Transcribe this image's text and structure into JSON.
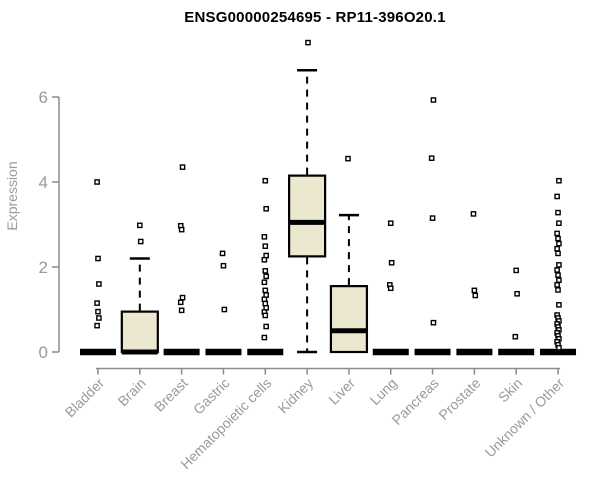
{
  "chart_data": {
    "type": "boxplot",
    "title": "ENSG00000254695 - RP11-396O20.1",
    "ylabel": "Expression",
    "xlabel": "",
    "yticks": [
      0,
      2,
      4,
      6
    ],
    "ylim": [
      0,
      7.4
    ],
    "grid": false,
    "legend": false,
    "categories": [
      "Bladder",
      "Brain",
      "Breast",
      "Gastric",
      "Hematopoietic cells",
      "Kidney",
      "Liver",
      "Lung",
      "Pancreas",
      "Prostate",
      "Skin",
      "Unknown / Other"
    ],
    "boxes": [
      {
        "category": "Bladder",
        "q1": 0,
        "median": 0,
        "q3": 0,
        "whisker_low": 0,
        "whisker_high": 0,
        "outliers": [
          4.0,
          2.2,
          1.6,
          1.15,
          0.95,
          0.8,
          0.62
        ]
      },
      {
        "category": "Brain",
        "q1": 0,
        "median": 0,
        "q3": 0.95,
        "whisker_low": 0,
        "whisker_high": 2.2,
        "outliers": [
          2.98,
          2.6
        ]
      },
      {
        "category": "Breast",
        "q1": 0,
        "median": 0,
        "q3": 0,
        "whisker_low": 0,
        "whisker_high": 0,
        "outliers": [
          4.35,
          2.97,
          2.88,
          1.28,
          1.17,
          0.98
        ]
      },
      {
        "category": "Gastric",
        "q1": 0,
        "median": 0,
        "q3": 0,
        "whisker_low": 0,
        "whisker_high": 0,
        "outliers": [
          2.32,
          2.03,
          1.0
        ]
      },
      {
        "category": "Hematopoietic cells",
        "q1": 0,
        "median": 0,
        "q3": 0,
        "whisker_low": 0,
        "whisker_high": 0,
        "outliers": [
          4.03,
          3.37,
          2.71,
          2.49,
          2.27,
          2.17,
          1.91,
          1.78,
          1.64,
          1.45,
          1.34,
          1.24,
          1.14,
          1.04,
          0.94,
          0.86,
          0.6,
          0.34
        ]
      },
      {
        "category": "Kidney",
        "q1": 2.25,
        "median": 3.05,
        "q3": 4.15,
        "whisker_low": 0,
        "whisker_high": 6.63,
        "outliers": [
          7.28
        ]
      },
      {
        "category": "Liver",
        "q1": 0,
        "median": 0.5,
        "q3": 1.55,
        "whisker_low": 0,
        "whisker_high": 3.22,
        "outliers": [
          4.55
        ]
      },
      {
        "category": "Lung",
        "q1": 0,
        "median": 0,
        "q3": 0,
        "whisker_low": 0,
        "whisker_high": 0,
        "outliers": [
          3.03,
          2.1,
          1.58,
          1.5
        ]
      },
      {
        "category": "Pancreas",
        "q1": 0,
        "median": 0,
        "q3": 0,
        "whisker_low": 0,
        "whisker_high": 0,
        "outliers": [
          5.93,
          4.56,
          3.15,
          0.69
        ]
      },
      {
        "category": "Prostate",
        "q1": 0,
        "median": 0,
        "q3": 0,
        "whisker_low": 0,
        "whisker_high": 0,
        "outliers": [
          3.25,
          1.45,
          1.33
        ]
      },
      {
        "category": "Skin",
        "q1": 0,
        "median": 0,
        "q3": 0,
        "whisker_low": 0,
        "whisker_high": 0,
        "outliers": [
          1.92,
          1.37,
          0.36
        ]
      },
      {
        "category": "Unknown / Other",
        "q1": 0,
        "median": 0,
        "q3": 0,
        "whisker_low": 0,
        "whisker_high": 0,
        "outliers": [
          4.03,
          3.66,
          3.28,
          3.03,
          2.79,
          2.67,
          2.55,
          2.43,
          2.32,
          2.05,
          1.93,
          1.81,
          1.69,
          1.58,
          1.46,
          1.11,
          0.87,
          0.8,
          0.73,
          0.66,
          0.59,
          0.52,
          0.45,
          0.38,
          0.31,
          0.24,
          0.17,
          0.1
        ]
      }
    ],
    "colors": {
      "box_fill": "#ece8d0",
      "box_stroke": "#000000",
      "axis": "#8c8c8c",
      "label": "#9a9a9a",
      "title": "#000000",
      "background": "#ffffff"
    }
  }
}
